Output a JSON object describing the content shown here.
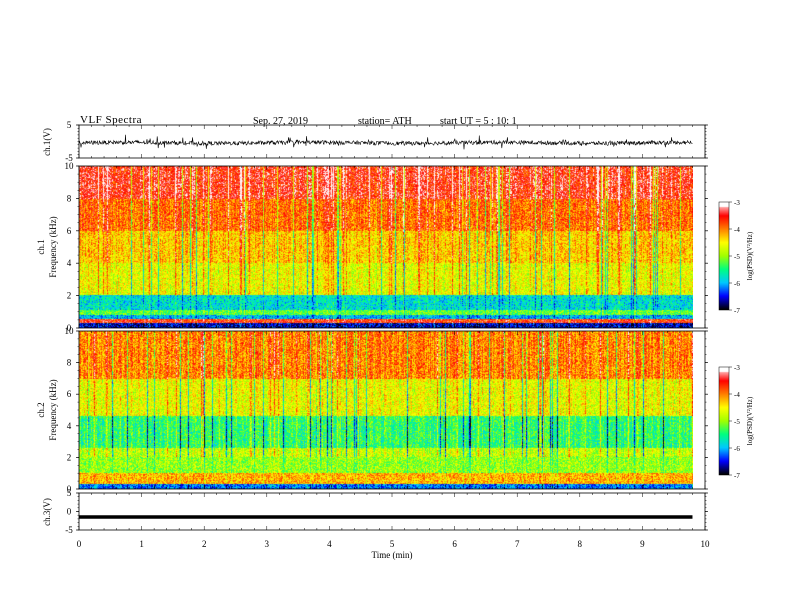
{
  "header": {
    "title": "VLF Spectra",
    "date": "Sep. 27, 2019",
    "station": "station= ATH",
    "start": "start UT = 5 : 10: 1"
  },
  "chart_data": [
    {
      "type": "line",
      "name": "ch1-waveform",
      "ylabel": "ch.1(V)",
      "ylim": [
        -5,
        5
      ],
      "yticks": [
        "5",
        "-5"
      ],
      "x": [
        0,
        9.8
      ],
      "note_values": "dense noisy waveform centered near -0.5 V spanning about -2 to 1 V"
    },
    {
      "type": "heatmap",
      "name": "ch1-spectrogram",
      "ylabel": "ch.1 Frequency (kHz)",
      "ylim": [
        0,
        10
      ],
      "yticks": [
        "0",
        "2",
        "4",
        "6",
        "8",
        "10"
      ],
      "x_range_min": [
        0,
        9.8
      ],
      "colorbar": {
        "label": "log(PSD)(V²/Hz)",
        "range": [
          -7,
          -3
        ],
        "ticks": [
          "-3",
          "-4",
          "-5",
          "-6",
          "-7"
        ]
      },
      "bands": [
        {
          "from": 0.0,
          "to": 0.3,
          "level": -6.6
        },
        {
          "from": 0.3,
          "to": 0.55,
          "level": -3.6
        },
        {
          "from": 0.55,
          "to": 0.8,
          "level": -6.0
        },
        {
          "from": 0.8,
          "to": 1.1,
          "level": -5.2
        },
        {
          "from": 1.1,
          "to": 2.0,
          "level": -5.8
        },
        {
          "from": 2.0,
          "to": 4.0,
          "level": -4.6
        },
        {
          "from": 4.0,
          "to": 6.0,
          "level": -4.3
        },
        {
          "from": 6.0,
          "to": 8.0,
          "level": -3.9
        },
        {
          "from": 8.0,
          "to": 10.0,
          "level": -3.5
        }
      ]
    },
    {
      "type": "heatmap",
      "name": "ch2-spectrogram",
      "ylabel": "ch.2 Frequency (kHz)",
      "ylim": [
        0,
        10
      ],
      "yticks": [
        "0",
        "2",
        "4",
        "6",
        "8",
        "10"
      ],
      "x_range_min": [
        0,
        9.8
      ],
      "colorbar": {
        "label": "log(PSD)(V²/Hz)",
        "range": [
          -7,
          -3
        ],
        "ticks": [
          "-3",
          "-4",
          "-5",
          "-6",
          "-7"
        ]
      },
      "bands": [
        {
          "from": 0.0,
          "to": 0.3,
          "level": -6.2
        },
        {
          "from": 0.3,
          "to": 1.0,
          "level": -4.2
        },
        {
          "from": 1.0,
          "to": 2.0,
          "level": -5.0
        },
        {
          "from": 2.0,
          "to": 2.6,
          "level": -4.8
        },
        {
          "from": 2.6,
          "to": 4.6,
          "level": -5.4
        },
        {
          "from": 4.6,
          "to": 7.0,
          "level": -4.6
        },
        {
          "from": 7.0,
          "to": 10.0,
          "level": -4.0
        }
      ]
    },
    {
      "type": "line",
      "name": "ch3-waveform",
      "ylabel": "ch.3(V)",
      "ylim": [
        -5,
        5
      ],
      "yticks": [
        "5",
        "0",
        "-5"
      ],
      "x": [
        0,
        9.8
      ],
      "y_constant": -1.5
    }
  ],
  "xaxis": {
    "label": "Time (min)",
    "ticks": [
      "0",
      "1",
      "2",
      "3",
      "4",
      "5",
      "6",
      "7",
      "8",
      "9",
      "10"
    ]
  },
  "colors": {
    "scale": [
      "#000000",
      "#0000ff",
      "#00c8ff",
      "#00ff80",
      "#a0ff00",
      "#ffff00",
      "#ff8000",
      "#ff0000",
      "#ffffff"
    ]
  }
}
